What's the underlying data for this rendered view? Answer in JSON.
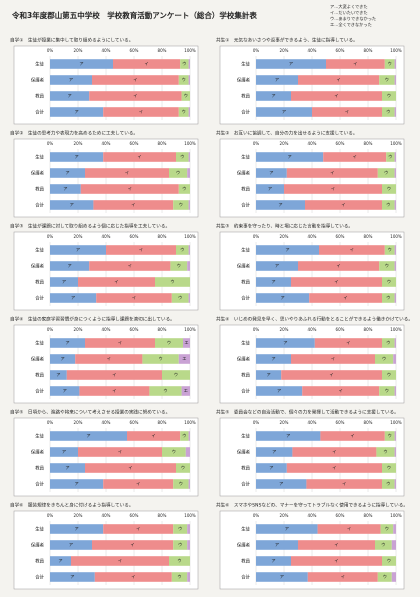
{
  "header": {
    "title": "令和3年度郡山第五中学校　学校教育活動アンケート（総合）学校集計表",
    "legend": [
      "ア…大変よくできた",
      "イ…だいたいできた",
      "ウ…あまりできなかった",
      "エ…全くできなかった"
    ]
  },
  "chart_data": [
    {
      "type": "hbar",
      "stacked": true,
      "title": "自学①　生徒が授業に集中して取り組めるようにしている。",
      "categories": [
        "生徒",
        "保護者",
        "教員",
        "合計"
      ],
      "xlim": [
        0,
        100
      ],
      "xticks": [
        {
          "value": 0,
          "label": "0%"
        },
        {
          "value": 20,
          "label": "20%"
        },
        {
          "value": 40,
          "label": "40%"
        },
        {
          "value": 60,
          "label": "60%"
        },
        {
          "value": 80,
          "label": "80%"
        },
        {
          "value": 100,
          "label": "100%"
        }
      ],
      "series": [
        {
          "name": "ア",
          "color": "#7ea6d8",
          "values": [
            45,
            30,
            28,
            38
          ]
        },
        {
          "name": "イ",
          "color": "#ee8c8c",
          "values": [
            48,
            62,
            66,
            54
          ]
        },
        {
          "name": "ウ",
          "color": "#b9d98a",
          "values": [
            6,
            7,
            6,
            7
          ]
        },
        {
          "name": "エ",
          "color": "#c9a2d4",
          "values": [
            1,
            1,
            0,
            1
          ]
        }
      ]
    },
    {
      "type": "hbar",
      "stacked": true,
      "title": "自学②　生徒の思考力や表現力を高めるために工夫している。",
      "categories": [
        "生徒",
        "保護者",
        "教員",
        "合計"
      ],
      "xlim": [
        0,
        100
      ],
      "xticks": [
        {
          "value": 0,
          "label": "0%"
        },
        {
          "value": 20,
          "label": "20%"
        },
        {
          "value": 40,
          "label": "40%"
        },
        {
          "value": 60,
          "label": "60%"
        },
        {
          "value": 80,
          "label": "80%"
        },
        {
          "value": 100,
          "label": "100%"
        }
      ],
      "series": [
        {
          "name": "ア",
          "color": "#7ea6d8",
          "values": [
            38,
            25,
            22,
            31
          ]
        },
        {
          "name": "イ",
          "color": "#ee8c8c",
          "values": [
            52,
            60,
            70,
            57
          ]
        },
        {
          "name": "ウ",
          "color": "#b9d98a",
          "values": [
            9,
            13,
            8,
            11
          ]
        },
        {
          "name": "エ",
          "color": "#c9a2d4",
          "values": [
            1,
            2,
            0,
            1
          ]
        }
      ]
    },
    {
      "type": "hbar",
      "stacked": true,
      "title": "自学③　生徒が課題に対して取り組めるよう個に応じた指導を工夫している。",
      "categories": [
        "生徒",
        "保護者",
        "教員",
        "合計"
      ],
      "xlim": [
        0,
        100
      ],
      "xticks": [
        {
          "value": 0,
          "label": "0%"
        },
        {
          "value": 20,
          "label": "20%"
        },
        {
          "value": 40,
          "label": "40%"
        },
        {
          "value": 60,
          "label": "60%"
        },
        {
          "value": 80,
          "label": "80%"
        },
        {
          "value": 100,
          "label": "100%"
        }
      ],
      "series": [
        {
          "name": "ア",
          "color": "#7ea6d8",
          "values": [
            40,
            28,
            20,
            33
          ]
        },
        {
          "name": "イ",
          "color": "#ee8c8c",
          "values": [
            50,
            58,
            55,
            54
          ]
        },
        {
          "name": "ウ",
          "color": "#b9d98a",
          "values": [
            9,
            12,
            25,
            12
          ]
        },
        {
          "name": "エ",
          "color": "#c9a2d4",
          "values": [
            1,
            2,
            0,
            1
          ]
        }
      ]
    },
    {
      "type": "hbar",
      "stacked": true,
      "title": "自学④　生徒の家庭学習習慣が身につくように指導し課題を適切に出している。",
      "categories": [
        "生徒",
        "保護者",
        "教員",
        "合計"
      ],
      "xlim": [
        0,
        100
      ],
      "xticks": [
        {
          "value": 0,
          "label": "0%"
        },
        {
          "value": 20,
          "label": "20%"
        },
        {
          "value": 40,
          "label": "40%"
        },
        {
          "value": 60,
          "label": "60%"
        },
        {
          "value": 80,
          "label": "80%"
        },
        {
          "value": 100,
          "label": "100%"
        }
      ],
      "series": [
        {
          "name": "ア",
          "color": "#7ea6d8",
          "values": [
            25,
            18,
            12,
            21
          ]
        },
        {
          "name": "イ",
          "color": "#ee8c8c",
          "values": [
            50,
            48,
            68,
            50
          ]
        },
        {
          "name": "ウ",
          "color": "#b9d98a",
          "values": [
            20,
            26,
            20,
            23
          ]
        },
        {
          "name": "エ",
          "color": "#c9a2d4",
          "values": [
            5,
            8,
            0,
            6
          ]
        }
      ]
    },
    {
      "type": "hbar",
      "stacked": true,
      "title": "自学⑤　日頃から、進路や将来について考えさせる授業の実践に努めている。",
      "categories": [
        "生徒",
        "保護者",
        "教員",
        "合計"
      ],
      "xlim": [
        0,
        100
      ],
      "xticks": [
        {
          "value": 0,
          "label": "0%"
        },
        {
          "value": 20,
          "label": "20%"
        },
        {
          "value": 40,
          "label": "40%"
        },
        {
          "value": 60,
          "label": "60%"
        },
        {
          "value": 80,
          "label": "80%"
        },
        {
          "value": 100,
          "label": "100%"
        }
      ],
      "series": [
        {
          "name": "ア",
          "color": "#7ea6d8",
          "values": [
            55,
            20,
            25,
            38
          ]
        },
        {
          "name": "イ",
          "color": "#ee8c8c",
          "values": [
            38,
            60,
            65,
            50
          ]
        },
        {
          "name": "ウ",
          "color": "#b9d98a",
          "values": [
            6,
            17,
            10,
            11
          ]
        },
        {
          "name": "エ",
          "color": "#c9a2d4",
          "values": [
            1,
            3,
            0,
            1
          ]
        }
      ]
    },
    {
      "type": "hbar",
      "stacked": true,
      "title": "自学⑥　服装規律をきちんと身に付けるよう指導している。",
      "categories": [
        "生徒",
        "保護者",
        "教員",
        "合計"
      ],
      "xlim": [
        0,
        100
      ],
      "xticks": [
        {
          "value": 0,
          "label": "0%"
        },
        {
          "value": 20,
          "label": "20%"
        },
        {
          "value": 40,
          "label": "40%"
        },
        {
          "value": 60,
          "label": "60%"
        },
        {
          "value": 80,
          "label": "80%"
        },
        {
          "value": 100,
          "label": "100%"
        }
      ],
      "series": [
        {
          "name": "ア",
          "color": "#7ea6d8",
          "values": [
            38,
            30,
            15,
            32
          ]
        },
        {
          "name": "イ",
          "color": "#ee8c8c",
          "values": [
            50,
            58,
            70,
            55
          ]
        },
        {
          "name": "ウ",
          "color": "#b9d98a",
          "values": [
            10,
            10,
            15,
            11
          ]
        },
        {
          "name": "エ",
          "color": "#c9a2d4",
          "values": [
            2,
            2,
            0,
            2
          ]
        }
      ]
    },
    {
      "type": "hbar",
      "stacked": true,
      "title": "共生①　元気なあいさつや返事ができるよう、生徒に指導している。",
      "categories": [
        "生徒",
        "保護者",
        "教員",
        "合計"
      ],
      "xlim": [
        0,
        100
      ],
      "xticks": [
        {
          "value": 0,
          "label": "0%"
        },
        {
          "value": 20,
          "label": "20%"
        },
        {
          "value": 40,
          "label": "40%"
        },
        {
          "value": 60,
          "label": "60%"
        },
        {
          "value": 80,
          "label": "80%"
        },
        {
          "value": 100,
          "label": "100%"
        }
      ],
      "series": [
        {
          "name": "ア",
          "color": "#7ea6d8",
          "values": [
            50,
            30,
            25,
            40
          ]
        },
        {
          "name": "イ",
          "color": "#ee8c8c",
          "values": [
            42,
            58,
            65,
            50
          ]
        },
        {
          "name": "ウ",
          "color": "#b9d98a",
          "values": [
            7,
            11,
            10,
            9
          ]
        },
        {
          "name": "エ",
          "color": "#c9a2d4",
          "values": [
            1,
            1,
            0,
            1
          ]
        }
      ]
    },
    {
      "type": "hbar",
      "stacked": true,
      "title": "共生②　お互いに協調して、自分の力を出せるように支援している。",
      "categories": [
        "生徒",
        "保護者",
        "教員",
        "合計"
      ],
      "xlim": [
        0,
        100
      ],
      "xticks": [
        {
          "value": 0,
          "label": "0%"
        },
        {
          "value": 20,
          "label": "20%"
        },
        {
          "value": 40,
          "label": "40%"
        },
        {
          "value": 60,
          "label": "60%"
        },
        {
          "value": 80,
          "label": "80%"
        },
        {
          "value": 100,
          "label": "100%"
        }
      ],
      "series": [
        {
          "name": "ア",
          "color": "#7ea6d8",
          "values": [
            48,
            22,
            20,
            35
          ]
        },
        {
          "name": "イ",
          "color": "#ee8c8c",
          "values": [
            45,
            65,
            70,
            55
          ]
        },
        {
          "name": "ウ",
          "color": "#b9d98a",
          "values": [
            6,
            12,
            10,
            9
          ]
        },
        {
          "name": "エ",
          "color": "#c9a2d4",
          "values": [
            1,
            1,
            0,
            1
          ]
        }
      ]
    },
    {
      "type": "hbar",
      "stacked": true,
      "title": "共生③　約束事を守ったり、時と場に応じた言動を指導している。",
      "categories": [
        "生徒",
        "保護者",
        "教員",
        "合計"
      ],
      "xlim": [
        0,
        100
      ],
      "xticks": [
        {
          "value": 0,
          "label": "0%"
        },
        {
          "value": 20,
          "label": "20%"
        },
        {
          "value": 40,
          "label": "40%"
        },
        {
          "value": 60,
          "label": "60%"
        },
        {
          "value": 80,
          "label": "80%"
        },
        {
          "value": 100,
          "label": "100%"
        }
      ],
      "series": [
        {
          "name": "ア",
          "color": "#7ea6d8",
          "values": [
            45,
            30,
            25,
            38
          ]
        },
        {
          "name": "イ",
          "color": "#ee8c8c",
          "values": [
            47,
            58,
            65,
            52
          ]
        },
        {
          "name": "ウ",
          "color": "#b9d98a",
          "values": [
            7,
            11,
            10,
            9
          ]
        },
        {
          "name": "エ",
          "color": "#c9a2d4",
          "values": [
            1,
            1,
            0,
            1
          ]
        }
      ]
    },
    {
      "type": "hbar",
      "stacked": true,
      "title": "共生④　いじめの発見を早く、思いやりあふれる行動をとることができるよう働きかけている。",
      "categories": [
        "生徒",
        "保護者",
        "教員",
        "合計"
      ],
      "xlim": [
        0,
        100
      ],
      "xticks": [
        {
          "value": 0,
          "label": "0%"
        },
        {
          "value": 20,
          "label": "20%"
        },
        {
          "value": 40,
          "label": "40%"
        },
        {
          "value": 60,
          "label": "60%"
        },
        {
          "value": 80,
          "label": "80%"
        },
        {
          "value": 100,
          "label": "100%"
        }
      ],
      "series": [
        {
          "name": "ア",
          "color": "#7ea6d8",
          "values": [
            42,
            25,
            18,
            33
          ]
        },
        {
          "name": "イ",
          "color": "#ee8c8c",
          "values": [
            48,
            60,
            72,
            55
          ]
        },
        {
          "name": "ウ",
          "color": "#b9d98a",
          "values": [
            9,
            13,
            10,
            11
          ]
        },
        {
          "name": "エ",
          "color": "#c9a2d4",
          "values": [
            1,
            2,
            0,
            1
          ]
        }
      ]
    },
    {
      "type": "hbar",
      "stacked": true,
      "title": "共生⑤　委員会などの自治活動で、個々の力を発揮して活動できるように支援している。",
      "categories": [
        "生徒",
        "保護者",
        "教員",
        "合計"
      ],
      "xlim": [
        0,
        100
      ],
      "xticks": [
        {
          "value": 0,
          "label": "0%"
        },
        {
          "value": 20,
          "label": "20%"
        },
        {
          "value": 40,
          "label": "40%"
        },
        {
          "value": 60,
          "label": "60%"
        },
        {
          "value": 80,
          "label": "80%"
        },
        {
          "value": 100,
          "label": "100%"
        }
      ],
      "series": [
        {
          "name": "ア",
          "color": "#7ea6d8",
          "values": [
            46,
            26,
            22,
            36
          ]
        },
        {
          "name": "イ",
          "color": "#ee8c8c",
          "values": [
            46,
            60,
            68,
            54
          ]
        },
        {
          "name": "ウ",
          "color": "#b9d98a",
          "values": [
            7,
            13,
            10,
            9
          ]
        },
        {
          "name": "エ",
          "color": "#c9a2d4",
          "values": [
            1,
            1,
            0,
            1
          ]
        }
      ]
    },
    {
      "type": "hbar",
      "stacked": true,
      "title": "共生⑥　スマホやSNSなどの、マナーを守ってトラブルなく使用できるように指導している。",
      "categories": [
        "生徒",
        "保護者",
        "教員",
        "合計"
      ],
      "xlim": [
        0,
        100
      ],
      "xticks": [
        {
          "value": 0,
          "label": "0%"
        },
        {
          "value": 20,
          "label": "20%"
        },
        {
          "value": 40,
          "label": "40%"
        },
        {
          "value": 60,
          "label": "60%"
        },
        {
          "value": 80,
          "label": "80%"
        },
        {
          "value": 100,
          "label": "100%"
        }
      ],
      "series": [
        {
          "name": "ア",
          "color": "#7ea6d8",
          "values": [
            44,
            30,
            25,
            37
          ]
        },
        {
          "name": "イ",
          "color": "#ee8c8c",
          "values": [
            45,
            55,
            65,
            50
          ]
        },
        {
          "name": "ウ",
          "color": "#b9d98a",
          "values": [
            9,
            12,
            10,
            10
          ]
        },
        {
          "name": "エ",
          "color": "#c9a2d4",
          "values": [
            2,
            3,
            0,
            3
          ]
        }
      ]
    }
  ]
}
